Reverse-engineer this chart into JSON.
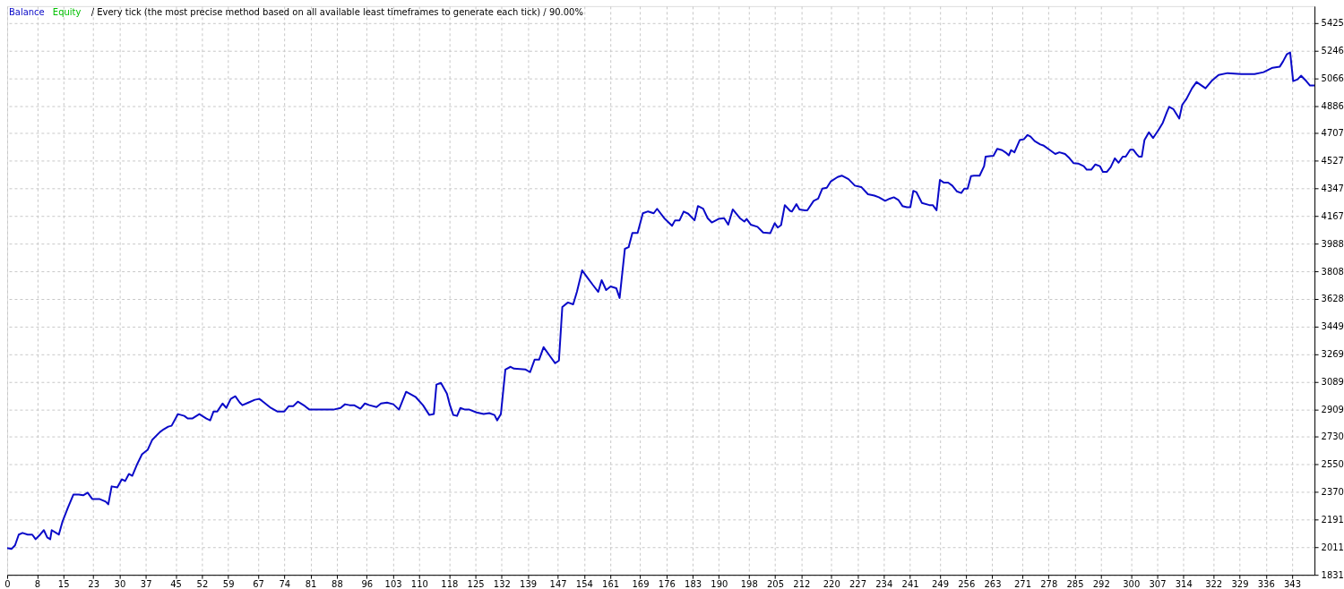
{
  "chart_data": {
    "type": "line",
    "annotations": [
      "/ Every tick (the most precise method based on all available least timeframes to generate each tick) / 90.00%"
    ],
    "x": [
      0,
      1.2,
      2.1,
      3.1,
      4.1,
      5.5,
      6.7,
      7.6,
      8.8,
      9.8,
      10.7,
      11.5,
      11.9,
      13.1,
      13.8,
      14.8,
      16.2,
      17.7,
      19.1,
      20.3,
      21.5,
      22.7,
      24.6,
      26.3,
      27.0,
      27.9,
      29.4,
      30.6,
      31.5,
      32.5,
      33.4,
      34.6,
      36.0,
      37.5,
      38.7,
      40.8,
      41.8,
      43.0,
      43.9,
      45.6,
      47.3,
      48.2,
      49.4,
      51.3,
      53.2,
      54.2,
      55.1,
      56.1,
      57.5,
      58.5,
      59.7,
      60.9,
      62.1,
      62.8,
      64.4,
      66.1,
      67.3,
      68.0,
      70.4,
      72.1,
      74.0,
      75.2,
      76.4,
      77.6,
      79.5,
      80.7,
      82.4,
      87.1,
      89.0,
      90.2,
      91.4,
      92.6,
      94.3,
      95.5,
      96.7,
      98.6,
      99.8,
      101.4,
      103.1,
      104.6,
      106.5,
      109.1,
      111.0,
      112.7,
      113.9,
      114.6,
      115.8,
      117.4,
      118.2,
      119.1,
      120.1,
      121.0,
      122.2,
      123.4,
      125.3,
      127.2,
      128.7,
      130.1,
      130.8,
      131.8,
      133.0,
      134.4,
      135.3,
      138.4,
      139.6,
      140.8,
      142.0,
      143.2,
      144.9,
      146.3,
      147.3,
      148.2,
      149.7,
      151.1,
      152.1,
      153.5,
      154.9,
      156.3,
      157.8,
      158.7,
      159.9,
      161.1,
      162.6,
      163.5,
      164.9,
      165.9,
      166.9,
      168.3,
      169.7,
      171.1,
      172.6,
      173.5,
      175.4,
      177.5,
      178.3,
      179.5,
      180.6,
      181.8,
      183.5,
      184.4,
      185.8,
      187.0,
      188.1,
      189.9,
      191.4,
      192.5,
      193.7,
      195.6,
      196.8,
      197.4,
      198.5,
      200.3,
      201.8,
      203.7,
      204.9,
      205.7,
      206.6,
      207.6,
      209.0,
      209.5,
      210.7,
      211.5,
      213.0,
      213.6,
      215.3,
      216.5,
      217.6,
      218.8,
      219.9,
      221.7,
      222.8,
      224.6,
      226.3,
      228.0,
      229.8,
      231.5,
      232.7,
      234.4,
      235.6,
      236.7,
      237.9,
      239.0,
      240.2,
      241.1,
      241.9,
      242.7,
      244.2,
      246.2,
      247.1,
      248.1,
      249.0,
      250.0,
      251.2,
      252.3,
      253.5,
      254.7,
      255.5,
      256.4,
      257.3,
      258.1,
      259.6,
      260.8,
      261.2,
      262.2,
      263.3,
      264.3,
      265.6,
      266.8,
      267.4,
      268.0,
      268.9,
      270.3,
      271.4,
      272.4,
      273.2,
      274.3,
      275.8,
      276.6,
      278.4,
      279.8,
      280.9,
      282.4,
      283.6,
      284.7,
      285.9,
      287.4,
      288.2,
      289.4,
      290.5,
      291.7,
      292.5,
      293.6,
      294.6,
      295.7,
      296.7,
      297.8,
      298.6,
      299.8,
      300.6,
      301.5,
      302.1,
      302.9,
      303.6,
      304.8,
      305.9,
      307.3,
      308.5,
      309.6,
      310.2,
      311.3,
      312.9,
      313.7,
      314.8,
      316.3,
      317.5,
      319.9,
      321.5,
      323.4,
      325.8,
      329.4,
      333.0,
      335.4,
      337.8,
      339.7,
      340.6,
      341.6,
      342.5,
      343.3,
      344.5,
      345.4,
      346.8,
      347.8,
      349.0
    ],
    "series": [
      {
        "name": "Balance",
        "color": "#0a0ac8",
        "values": [
          2006,
          2000,
          2023,
          2093,
          2104,
          2093,
          2093,
          2063,
          2093,
          2122,
          2075,
          2063,
          2122,
          2104,
          2093,
          2180,
          2267,
          2354,
          2354,
          2349,
          2366,
          2325,
          2325,
          2308,
          2290,
          2407,
          2401,
          2453,
          2442,
          2488,
          2476,
          2546,
          2616,
          2645,
          2709,
          2761,
          2779,
          2796,
          2802,
          2878,
          2866,
          2849,
          2849,
          2878,
          2849,
          2837,
          2895,
          2895,
          2947,
          2918,
          2977,
          2994,
          2953,
          2936,
          2953,
          2971,
          2977,
          2965,
          2918,
          2895,
          2895,
          2930,
          2930,
          2959,
          2930,
          2907,
          2907,
          2907,
          2918,
          2942,
          2936,
          2936,
          2913,
          2947,
          2936,
          2924,
          2947,
          2953,
          2942,
          2907,
          3023,
          2988,
          2936,
          2872,
          2878,
          3070,
          3081,
          3011,
          2936,
          2872,
          2866,
          2918,
          2907,
          2907,
          2889,
          2878,
          2884,
          2872,
          2837,
          2878,
          3168,
          3186,
          3174,
          3168,
          3151,
          3232,
          3232,
          3314,
          3256,
          3209,
          3227,
          3575,
          3605,
          3593,
          3674,
          3814,
          3767,
          3721,
          3674,
          3750,
          3686,
          3709,
          3698,
          3634,
          3954,
          3965,
          4058,
          4058,
          4186,
          4198,
          4186,
          4215,
          4154,
          4104,
          4140,
          4140,
          4197,
          4183,
          4140,
          4233,
          4216,
          4154,
          4126,
          4149,
          4154,
          4112,
          4211,
          4154,
          4132,
          4149,
          4112,
          4098,
          4061,
          4056,
          4121,
          4093,
          4109,
          4239,
          4202,
          4197,
          4245,
          4211,
          4205,
          4205,
          4267,
          4281,
          4346,
          4352,
          4394,
          4422,
          4431,
          4408,
          4366,
          4357,
          4310,
          4301,
          4290,
          4267,
          4281,
          4290,
          4273,
          4233,
          4225,
          4225,
          4332,
          4324,
          4253,
          4239,
          4239,
          4205,
          4403,
          4386,
          4386,
          4366,
          4329,
          4318,
          4346,
          4346,
          4428,
          4431,
          4431,
          4493,
          4555,
          4558,
          4560,
          4606,
          4597,
          4577,
          4563,
          4597,
          4583,
          4662,
          4668,
          4696,
          4685,
          4656,
          4634,
          4628,
          4597,
          4572,
          4583,
          4572,
          4544,
          4512,
          4510,
          4493,
          4470,
          4470,
          4504,
          4493,
          4456,
          4456,
          4487,
          4544,
          4515,
          4555,
          4555,
          4600,
          4600,
          4572,
          4555,
          4555,
          4662,
          4713,
          4676,
          4727,
          4775,
          4845,
          4879,
          4865,
          4803,
          4893,
          4930,
          5000,
          5041,
          5000,
          5047,
          5087,
          5099,
          5093,
          5093,
          5105,
          5134,
          5140,
          5175,
          5221,
          5233,
          5047,
          5058,
          5082,
          5047,
          5018,
          5018
        ]
      },
      {
        "name": "Equity",
        "color": "#00c000",
        "values": [
          null,
          null,
          null,
          null,
          null,
          null,
          null,
          null,
          null,
          null,
          null,
          null,
          null,
          null,
          null,
          null,
          null,
          null,
          null,
          null,
          null,
          null,
          null,
          null,
          null,
          null,
          null,
          null,
          null,
          null,
          null,
          null,
          null,
          null,
          null,
          null,
          null,
          null,
          null,
          null,
          null,
          null,
          null,
          null,
          null,
          null,
          null,
          null,
          null,
          null,
          null,
          null,
          null,
          null,
          null,
          null,
          null,
          null,
          null,
          null,
          null,
          null,
          null,
          null,
          null,
          null,
          null,
          null,
          null,
          null,
          null,
          null,
          null,
          null,
          null,
          null,
          null,
          null,
          null,
          null,
          null,
          null,
          null,
          null,
          null,
          null,
          null,
          null,
          null,
          null,
          null,
          null,
          null,
          null,
          null,
          null,
          null,
          null,
          null,
          null,
          null,
          null,
          null,
          null,
          null,
          null,
          null,
          null,
          null,
          null,
          null,
          null,
          null,
          null,
          null,
          null,
          null,
          null,
          null,
          null,
          null,
          null,
          null,
          null,
          null,
          null,
          null,
          null,
          null,
          null,
          null,
          null,
          null,
          null,
          null,
          null,
          null,
          null,
          null,
          null,
          null,
          null,
          null,
          null,
          null,
          null,
          null,
          null,
          null,
          null,
          null,
          null,
          null,
          null,
          null,
          null,
          null,
          null,
          null,
          null,
          null,
          null,
          null,
          null,
          null,
          null,
          null,
          null,
          null,
          null,
          null,
          null,
          null,
          null,
          null,
          null,
          null,
          null,
          null,
          null,
          null,
          null,
          null,
          null,
          null,
          null,
          null,
          null,
          null,
          null,
          null,
          null,
          null,
          null,
          null,
          null,
          null,
          null,
          null,
          null,
          null,
          null,
          null,
          null,
          null,
          null,
          null,
          null,
          null,
          null,
          null,
          null,
          null,
          null,
          null,
          null,
          null,
          null,
          null,
          null,
          null,
          null,
          null,
          null,
          null,
          null,
          null,
          null,
          null,
          null,
          null,
          null,
          null,
          null,
          null,
          null,
          null,
          null,
          null,
          null,
          null,
          null,
          null,
          null,
          null,
          null,
          null,
          null,
          null,
          null,
          null,
          null,
          null,
          null,
          null,
          null,
          null,
          null,
          null,
          null,
          null,
          null,
          null,
          null,
          null,
          null,
          null,
          null,
          null,
          null,
          null,
          null,
          null
        ]
      }
    ],
    "xlim": [
      0,
      349
    ],
    "xticks": [
      0,
      8,
      15,
      23,
      30,
      37,
      45,
      52,
      59,
      67,
      74,
      81,
      88,
      96,
      103,
      110,
      118,
      125,
      132,
      139,
      147,
      154,
      161,
      169,
      176,
      183,
      190,
      198,
      205,
      212,
      220,
      227,
      234,
      241,
      249,
      256,
      263,
      271,
      278,
      285,
      292,
      300,
      307,
      314,
      322,
      329,
      336,
      343
    ],
    "ylim": [
      1831,
      5535
    ],
    "yticks": [
      1831,
      2011,
      2191,
      2370,
      2550,
      2730,
      2909,
      3089,
      3269,
      3449,
      3628,
      3808,
      3988,
      4167,
      4347,
      4527,
      4707,
      4886,
      5066,
      5246,
      5425
    ],
    "grid": true,
    "legend": "top left",
    "line_style": "solid",
    "marker": "none"
  }
}
